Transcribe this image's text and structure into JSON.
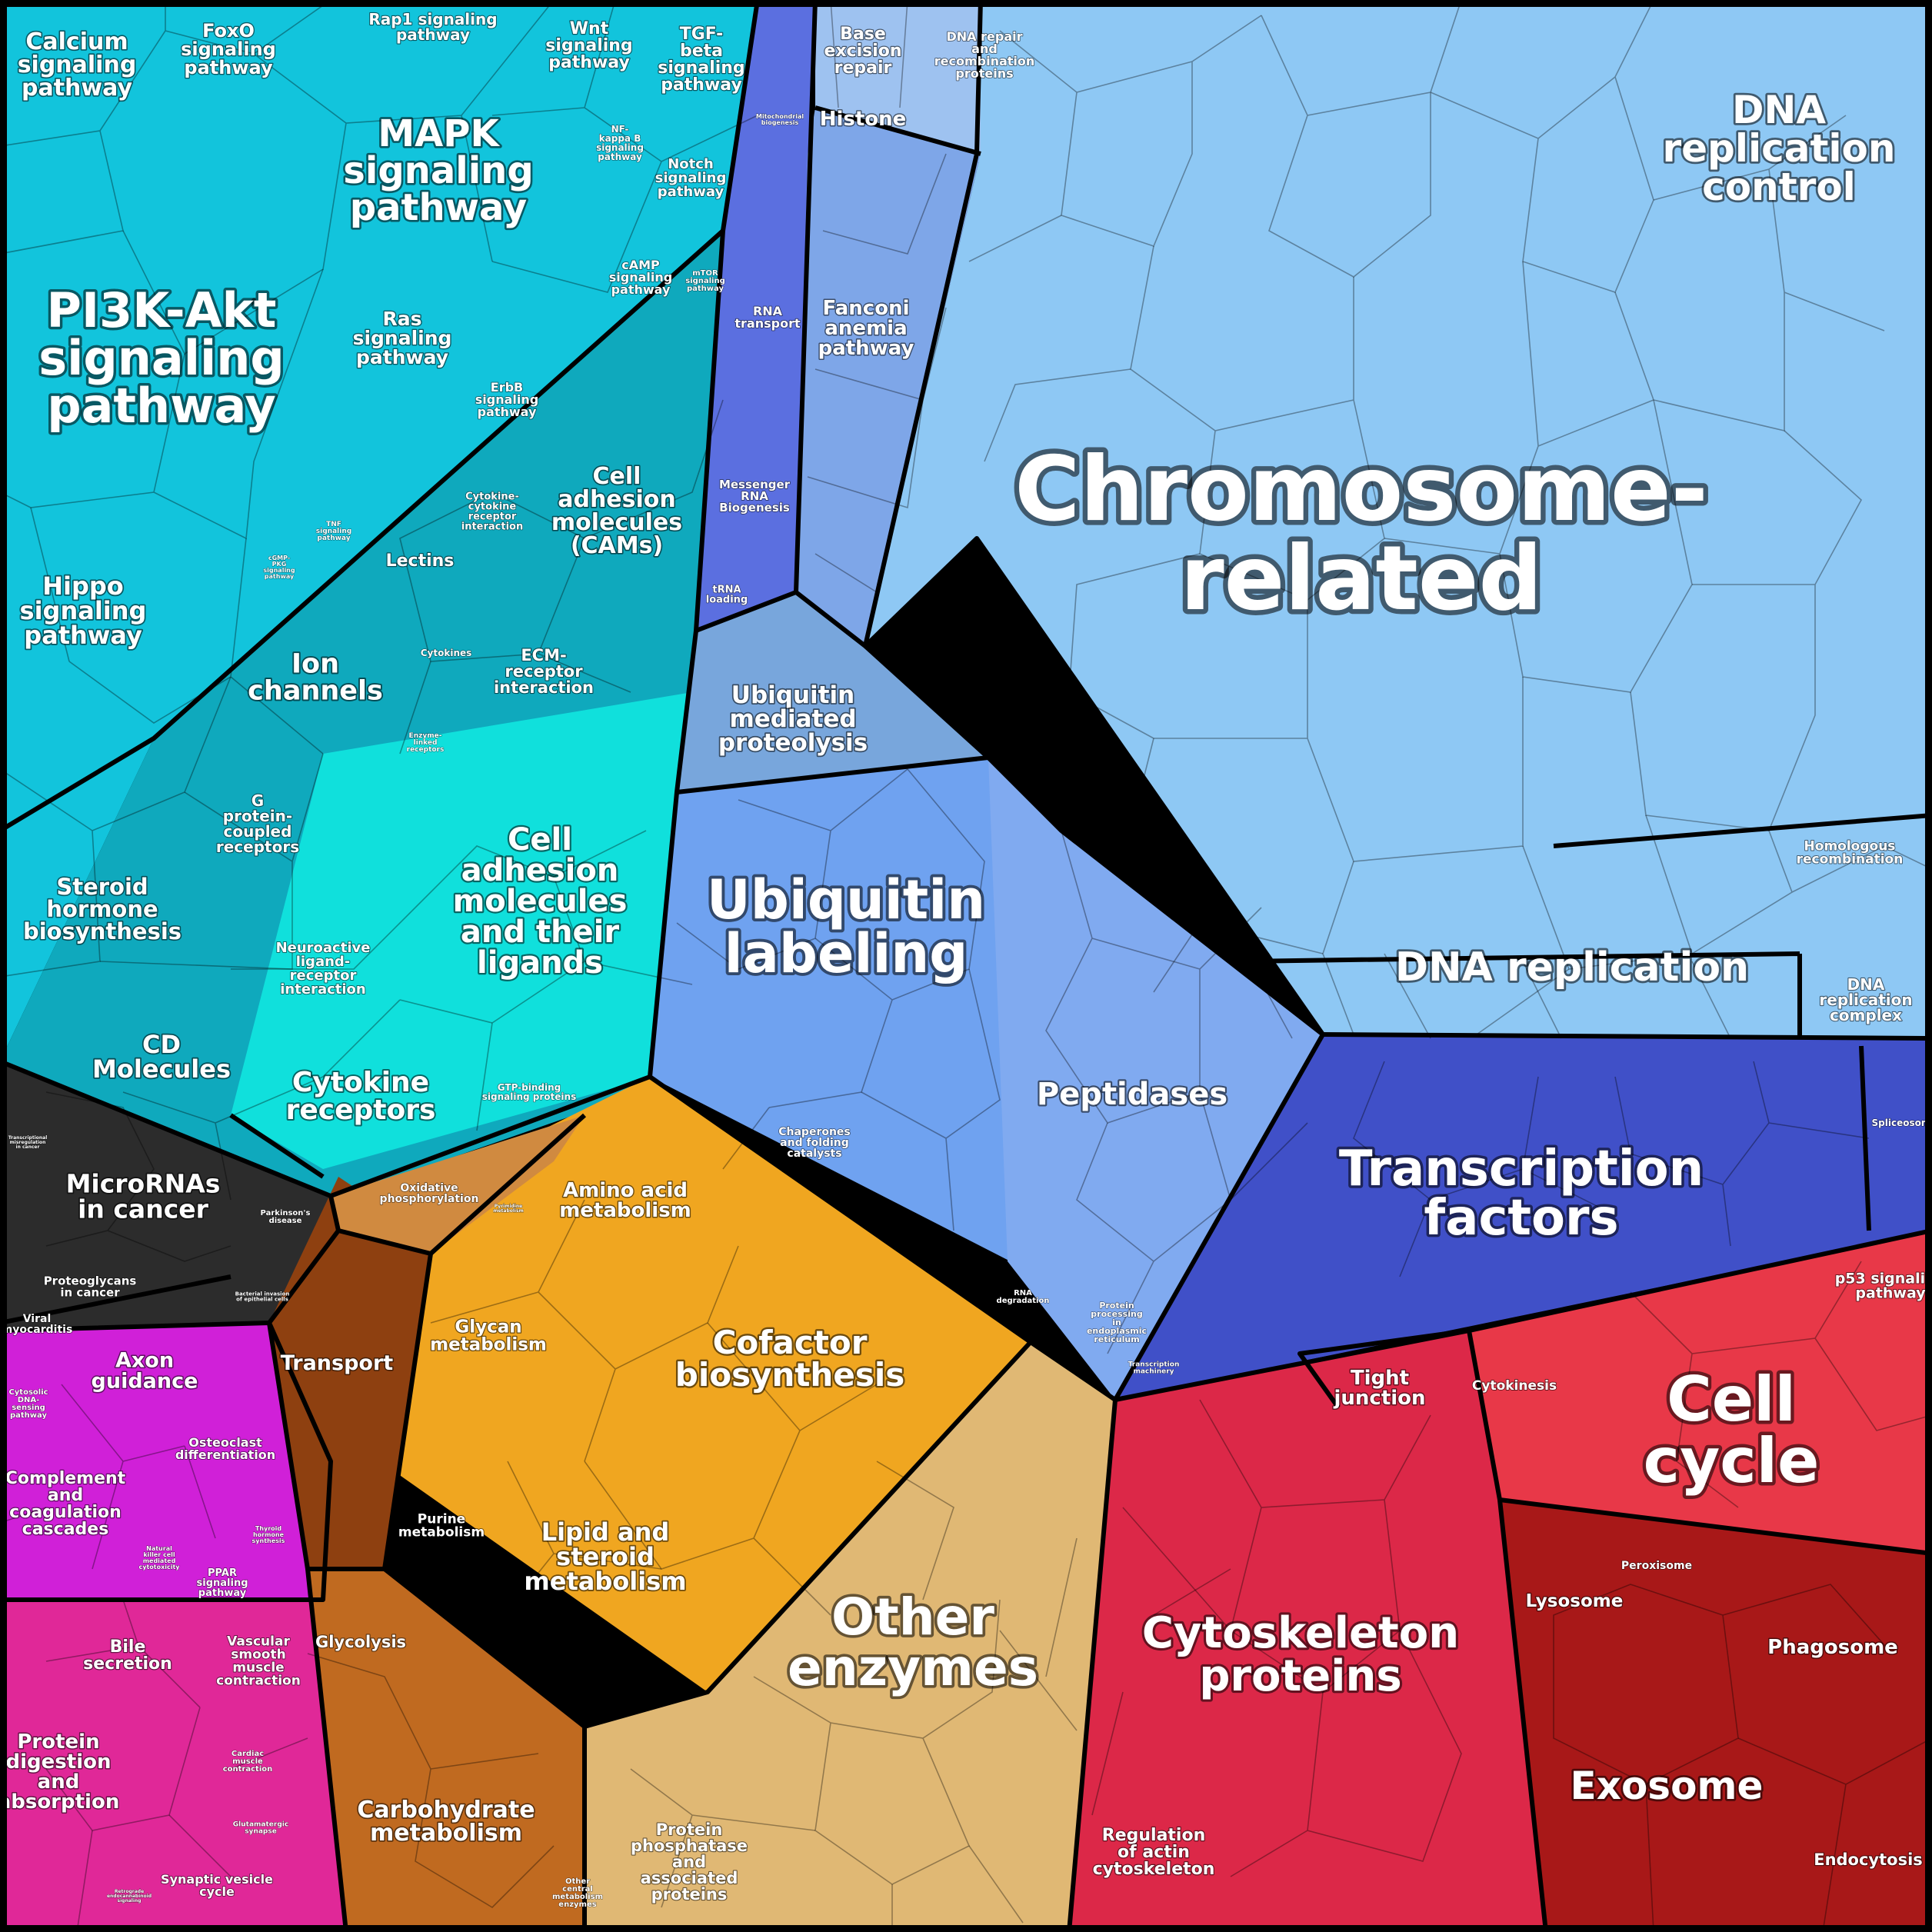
{
  "colors": {
    "signaling": "#12c4dc",
    "signaling_dark": "#0fa9bd",
    "adhesion": "#10e0dc",
    "blue_dark": "#5b6fe0",
    "chromosome": "#8ec8f4",
    "ubiquitin": "#6fa2f0",
    "peptidases": "#80aaf0",
    "transcription": "#4050c8",
    "cell_cycle": "#e83848",
    "cytoskeleton": "#dc2848",
    "exosome": "#a81818",
    "other_enzymes": "#e0b874",
    "cofactor": "#f0a620",
    "transport": "#8e4010",
    "carbohydrate": "#c06a20",
    "microrna": "#2c2c2c",
    "magenta": "#d020d8",
    "pink": "#e02898"
  },
  "regions": [
    {
      "name": "PI3K-Akt signaling pathway",
      "lines": [
        "PI3K-Akt",
        "signaling",
        "pathway"
      ]
    },
    {
      "name": "MAPK signaling pathway",
      "lines": [
        "MAPK",
        "signaling",
        "pathway"
      ]
    },
    {
      "name": "Calcium signaling pathway",
      "lines": [
        "Calcium",
        "signaling",
        "pathway"
      ]
    },
    {
      "name": "FoxO signaling pathway",
      "lines": [
        "FoxO",
        "signaling",
        "pathway"
      ]
    },
    {
      "name": "Rap1 signaling pathway",
      "lines": [
        "Rap1 signaling",
        "pathway"
      ]
    },
    {
      "name": "Wnt signaling pathway",
      "lines": [
        "Wnt",
        "signaling",
        "pathway"
      ]
    },
    {
      "name": "TGF-beta signaling pathway",
      "lines": [
        "TGF-",
        "beta",
        "signaling",
        "pathway"
      ]
    },
    {
      "name": "NF-kappa B signaling pathway",
      "lines": [
        "NF-",
        "kappa B",
        "signaling",
        "pathway"
      ]
    },
    {
      "name": "Notch signaling pathway",
      "lines": [
        "Notch",
        "signaling",
        "pathway"
      ]
    },
    {
      "name": "cAMP signaling pathway",
      "lines": [
        "cAMP",
        "signaling",
        "pathway"
      ]
    },
    {
      "name": "mTOR signaling pathway",
      "lines": [
        "mTOR",
        "signaling",
        "pathway"
      ]
    },
    {
      "name": "Ras signaling pathway",
      "lines": [
        "Ras",
        "signaling",
        "pathway"
      ]
    },
    {
      "name": "ErbB signaling pathway",
      "lines": [
        "ErbB",
        "signaling",
        "pathway"
      ]
    },
    {
      "name": "TNF signaling pathway",
      "lines": [
        "TNF",
        "signaling",
        "pathway"
      ]
    },
    {
      "name": "cGMP-PKG signaling pathway",
      "lines": [
        "cGMP-",
        "PKG",
        "signaling",
        "pathway"
      ]
    },
    {
      "name": "Hippo signaling pathway",
      "lines": [
        "Hippo",
        "signaling",
        "pathway"
      ]
    },
    {
      "name": "Cytokine-cytokine receptor interaction",
      "lines": [
        "Cytokine-",
        "cytokine",
        "receptor",
        "interaction"
      ]
    },
    {
      "name": "Cell adhesion molecules (CAMs)",
      "lines": [
        "Cell",
        "adhesion",
        "molecules",
        "(CAMs)"
      ]
    },
    {
      "name": "Lectins",
      "lines": [
        "Lectins"
      ]
    },
    {
      "name": "Cytokines",
      "lines": [
        "Cytokines"
      ]
    },
    {
      "name": "Ion channels",
      "lines": [
        "Ion",
        "channels"
      ]
    },
    {
      "name": "ECM-receptor interaction",
      "lines": [
        "ECM-",
        "receptor",
        "interaction"
      ]
    },
    {
      "name": "Enzyme-linked receptors",
      "lines": [
        "Enzyme-",
        "linked",
        "receptors"
      ]
    },
    {
      "name": "G protein-coupled receptors",
      "lines": [
        "G",
        "protein-",
        "coupled",
        "receptors"
      ]
    },
    {
      "name": "Steroid hormone biosynthesis",
      "lines": [
        "Steroid",
        "hormone",
        "biosynthesis"
      ]
    },
    {
      "name": "Cell adhesion molecules and their ligands",
      "lines": [
        "Cell",
        "adhesion",
        "molecules",
        "and their",
        "ligands"
      ]
    },
    {
      "name": "Neuroactive ligand-receptor interaction",
      "lines": [
        "Neuroactive",
        "ligand-",
        "receptor",
        "interaction"
      ]
    },
    {
      "name": "CD Molecules",
      "lines": [
        "CD",
        "Molecules"
      ]
    },
    {
      "name": "Cytokine receptors",
      "lines": [
        "Cytokine",
        "receptors"
      ]
    },
    {
      "name": "GTP-binding signaling proteins",
      "lines": [
        "GTP-binding",
        "signaling proteins"
      ]
    },
    {
      "name": "Transcriptional misregulation in cancer",
      "lines": [
        "Transcriptional",
        "misregulation",
        "in cancer"
      ]
    },
    {
      "name": "MicroRNAs in cancer",
      "lines": [
        "MicroRNAs",
        "in cancer"
      ]
    },
    {
      "name": "Parkinson's disease",
      "lines": [
        "Parkinson's",
        "disease"
      ]
    },
    {
      "name": "Proteoglycans in cancer",
      "lines": [
        "Proteoglycans",
        "in cancer"
      ]
    },
    {
      "name": "Bacterial invasion of epithelial cells",
      "lines": [
        "Bacterial invasion",
        "of epithelial cells"
      ]
    },
    {
      "name": "Viral myocarditis",
      "lines": [
        "Viral",
        "myocarditis"
      ]
    },
    {
      "name": "Axon guidance",
      "lines": [
        "Axon",
        "guidance"
      ]
    },
    {
      "name": "Cytosolic DNA-sensing pathway",
      "lines": [
        "Cytosolic",
        "DNA-",
        "sensing",
        "pathway"
      ]
    },
    {
      "name": "Osteoclast differentiation",
      "lines": [
        "Osteoclast",
        "differentiation"
      ]
    },
    {
      "name": "Complement and coagulation cascades",
      "lines": [
        "Complement",
        "and",
        "coagulation",
        "cascades"
      ]
    },
    {
      "name": "Natural killer cell mediated cytotoxicity",
      "lines": [
        "Natural",
        "killer cell",
        "mediated",
        "cytotoxicity"
      ]
    },
    {
      "name": "Thyroid hormone synthesis",
      "lines": [
        "Thyroid",
        "hormone",
        "synthesis"
      ]
    },
    {
      "name": "PPAR signaling pathway",
      "lines": [
        "PPAR",
        "signaling",
        "pathway"
      ]
    },
    {
      "name": "Bile secretion",
      "lines": [
        "Bile",
        "secretion"
      ]
    },
    {
      "name": "Vascular smooth muscle contraction",
      "lines": [
        "Vascular",
        "smooth",
        "muscle",
        "contraction"
      ]
    },
    {
      "name": "Cardiac muscle contraction",
      "lines": [
        "Cardiac",
        "muscle",
        "contraction"
      ]
    },
    {
      "name": "Protein digestion and absorption",
      "lines": [
        "Protein",
        "digestion",
        "and",
        "absorption"
      ]
    },
    {
      "name": "Glutamatergic synapse",
      "lines": [
        "Glutamatergic",
        "synapse"
      ]
    },
    {
      "name": "Synaptic vesicle cycle",
      "lines": [
        "Synaptic vesicle",
        "cycle"
      ]
    },
    {
      "name": "Retrograde endocannabinoid signaling",
      "lines": [
        "Retrograde",
        "endocannabinoid",
        "signaling"
      ]
    },
    {
      "name": "Mitochondrial biogenesis",
      "lines": [
        "Mitochondrial",
        "biogenesis"
      ]
    },
    {
      "name": "RNA transport",
      "lines": [
        "RNA",
        "transport"
      ]
    },
    {
      "name": "Messenger RNA Biogenesis",
      "lines": [
        "Messenger",
        "RNA",
        "Biogenesis"
      ]
    },
    {
      "name": "tRNA loading",
      "lines": [
        "tRNA",
        "loading"
      ]
    },
    {
      "name": "Base excision repair",
      "lines": [
        "Base",
        "excision",
        "repair"
      ]
    },
    {
      "name": "DNA repair and recombination proteins",
      "lines": [
        "DNA repair",
        "and",
        "recombination",
        "proteins"
      ]
    },
    {
      "name": "Histone",
      "lines": [
        "Histone"
      ]
    },
    {
      "name": "Fanconi anemia pathway",
      "lines": [
        "Fanconi",
        "anemia",
        "pathway"
      ]
    },
    {
      "name": "DNA replication control",
      "lines": [
        "DNA",
        "replication",
        "control"
      ]
    },
    {
      "name": "Chromosome-related",
      "lines": [
        "Chromosome-",
        "related"
      ]
    },
    {
      "name": "Homologous recombination",
      "lines": [
        "Homologous",
        "recombination"
      ]
    },
    {
      "name": "DNA replication",
      "lines": [
        "DNA replication"
      ]
    },
    {
      "name": "DNA replication complex",
      "lines": [
        "DNA",
        "replication",
        "complex"
      ]
    },
    {
      "name": "Ubiquitin mediated proteolysis",
      "lines": [
        "Ubiquitin",
        "mediated",
        "proteolysis"
      ]
    },
    {
      "name": "Ubiquitin labeling",
      "lines": [
        "Ubiquitin",
        "labeling"
      ]
    },
    {
      "name": "Peptidases",
      "lines": [
        "Peptidases"
      ]
    },
    {
      "name": "Chaperones and folding catalysts",
      "lines": [
        "Chaperones",
        "and folding",
        "catalysts"
      ]
    },
    {
      "name": "RNA degradation",
      "lines": [
        "RNA",
        "degradation"
      ]
    },
    {
      "name": "Protein processing in endoplasmic reticulum",
      "lines": [
        "Protein",
        "processing",
        "in",
        "endoplasmic",
        "reticulum"
      ]
    },
    {
      "name": "Transcription machinery",
      "lines": [
        "Transcription",
        "machinery"
      ]
    },
    {
      "name": "Transcription factors",
      "lines": [
        "Transcription",
        "factors"
      ]
    },
    {
      "name": "Spliceosome",
      "lines": [
        "Spliceosome"
      ]
    },
    {
      "name": "p53 signaling pathway",
      "lines": [
        "p53 signaling",
        "pathway"
      ]
    },
    {
      "name": "Tight junction",
      "lines": [
        "Tight",
        "junction"
      ]
    },
    {
      "name": "Cytokinesis",
      "lines": [
        "Cytokinesis"
      ]
    },
    {
      "name": "Cell cycle",
      "lines": [
        "Cell",
        "cycle"
      ]
    },
    {
      "name": "Cytoskeleton proteins",
      "lines": [
        "Cytoskeleton",
        "proteins"
      ]
    },
    {
      "name": "Lysosome",
      "lines": [
        "Lysosome"
      ]
    },
    {
      "name": "Peroxisome",
      "lines": [
        "Peroxisome"
      ]
    },
    {
      "name": "Phagosome",
      "lines": [
        "Phagosome"
      ]
    },
    {
      "name": "Exosome",
      "lines": [
        "Exosome"
      ]
    },
    {
      "name": "Regulation of actin cytoskeleton",
      "lines": [
        "Regulation",
        "of actin",
        "cytoskeleton"
      ]
    },
    {
      "name": "Endocytosis",
      "lines": [
        "Endocytosis"
      ]
    },
    {
      "name": "Oxidative phosphorylation",
      "lines": [
        "Oxidative",
        "phosphorylation"
      ]
    },
    {
      "name": "Pyrimidine metabolism",
      "lines": [
        "Pyrimidine",
        "metabolism"
      ]
    },
    {
      "name": "Amino acid metabolism",
      "lines": [
        "Amino acid",
        "metabolism"
      ]
    },
    {
      "name": "Transport",
      "lines": [
        "Transport"
      ]
    },
    {
      "name": "Glycan metabolism",
      "lines": [
        "Glycan",
        "metabolism"
      ]
    },
    {
      "name": "Cofactor biosynthesis",
      "lines": [
        "Cofactor",
        "biosynthesis"
      ]
    },
    {
      "name": "Purine metabolism",
      "lines": [
        "Purine",
        "metabolism"
      ]
    },
    {
      "name": "Lipid and steroid metabolism",
      "lines": [
        "Lipid and",
        "steroid",
        "metabolism"
      ]
    },
    {
      "name": "Other enzymes",
      "lines": [
        "Other",
        "enzymes"
      ]
    },
    {
      "name": "Glycolysis",
      "lines": [
        "Glycolysis"
      ]
    },
    {
      "name": "Carbohydrate metabolism",
      "lines": [
        "Carbohydrate",
        "metabolism"
      ]
    },
    {
      "name": "Other central metabolism enzymes",
      "lines": [
        "Other",
        "central",
        "metabolism",
        "enzymes"
      ]
    },
    {
      "name": "Protein phosphatase and associated proteins",
      "lines": [
        "Protein",
        "phosphatase",
        "and",
        "associated",
        "proteins"
      ]
    }
  ]
}
